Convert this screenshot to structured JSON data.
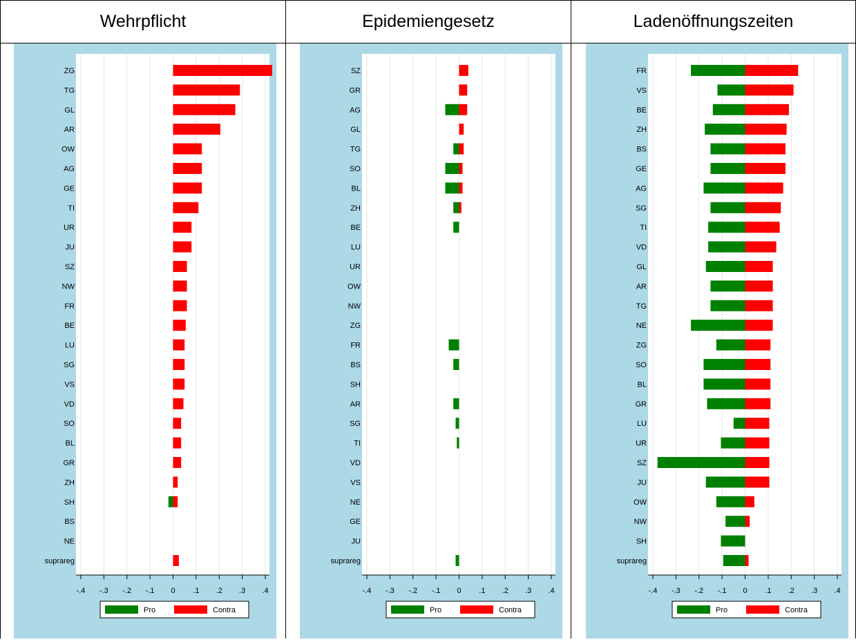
{
  "headers": [
    "Wehrpflicht",
    "Epidemiengesetz",
    "Ladenöffnungszeiten"
  ],
  "legend": {
    "pro": "Pro",
    "contra": "Contra"
  },
  "colors": {
    "pro": "#008000",
    "contra": "#ff0000",
    "panel_bg": "#add8e6",
    "plot_bg": "#ffffff",
    "grid": "#e6e6e6"
  },
  "chart_data": [
    {
      "type": "bar",
      "orientation": "horizontal",
      "stacked": "diverging",
      "title": "Wehrpflicht",
      "xlim": [
        -0.4,
        0.4
      ],
      "xticks": [
        -0.4,
        -0.3,
        -0.2,
        -0.1,
        0,
        0.1,
        0.2,
        0.3,
        0.4
      ],
      "xtick_labels": [
        "-.4",
        "-.3",
        "-.2",
        "-.1",
        "0",
        ".1",
        ".2",
        ".3",
        ".4"
      ],
      "grid": true,
      "legend_position": "bottom",
      "categories": [
        "ZG",
        "TG",
        "GL",
        "AR",
        "OW",
        "AG",
        "GE",
        "TI",
        "UR",
        "JU",
        "SZ",
        "NW",
        "FR",
        "BE",
        "LU",
        "SG",
        "VS",
        "VD",
        "SO",
        "BL",
        "GR",
        "ZH",
        "SH",
        "BS",
        "NE",
        "suprareg"
      ],
      "series": [
        {
          "name": "Pro",
          "values": [
            0,
            0,
            0,
            0,
            0,
            0,
            0,
            0,
            0,
            0,
            0,
            0,
            0,
            0,
            0,
            0,
            0,
            0,
            0,
            0,
            0,
            0,
            -0.02,
            0,
            0,
            0
          ]
        },
        {
          "name": "Contra",
          "values": [
            0.43,
            0.29,
            0.27,
            0.205,
            0.125,
            0.125,
            0.125,
            0.11,
            0.08,
            0.08,
            0.06,
            0.06,
            0.06,
            0.055,
            0.05,
            0.05,
            0.05,
            0.045,
            0.035,
            0.035,
            0.035,
            0.02,
            0.02,
            0,
            0,
            0.025
          ]
        }
      ]
    },
    {
      "type": "bar",
      "orientation": "horizontal",
      "stacked": "diverging",
      "title": "Epidemiengesetz",
      "xlim": [
        -0.4,
        0.4
      ],
      "xticks": [
        -0.4,
        -0.3,
        -0.2,
        -0.1,
        0,
        0.1,
        0.2,
        0.3,
        0.4
      ],
      "xtick_labels": [
        "-.4",
        "-.3",
        "-.2",
        "-.1",
        "0",
        ".1",
        ".2",
        ".3",
        ".4"
      ],
      "grid": true,
      "legend_position": "bottom",
      "categories": [
        "SZ",
        "GR",
        "AG",
        "GL",
        "TG",
        "SO",
        "BL",
        "ZH",
        "BE",
        "LU",
        "UR",
        "OW",
        "NW",
        "ZG",
        "FR",
        "BS",
        "SH",
        "AR",
        "SG",
        "TI",
        "VD",
        "VS",
        "NE",
        "GE",
        "JU",
        "suprareg"
      ],
      "series": [
        {
          "name": "Pro",
          "values": [
            0,
            0,
            -0.06,
            0,
            -0.025,
            -0.06,
            -0.06,
            -0.025,
            -0.025,
            0,
            0,
            0,
            0,
            0,
            -0.045,
            -0.025,
            0,
            -0.025,
            -0.015,
            -0.01,
            0,
            0,
            0,
            0,
            0,
            -0.015
          ]
        },
        {
          "name": "Contra",
          "values": [
            0.04,
            0.035,
            0.035,
            0.02,
            0.02,
            0.015,
            0.015,
            0.01,
            0,
            0,
            0,
            0,
            0,
            0,
            0,
            0,
            0,
            0,
            0,
            0,
            0,
            0,
            0,
            0,
            0,
            0
          ]
        }
      ]
    },
    {
      "type": "bar",
      "orientation": "horizontal",
      "stacked": "diverging",
      "title": "Ladenöffnungszeiten",
      "xlim": [
        -0.4,
        0.4
      ],
      "xticks": [
        -0.4,
        -0.3,
        -0.2,
        -0.1,
        0,
        0.1,
        0.2,
        0.3,
        0.4
      ],
      "xtick_labels": [
        "-.4",
        "-.3",
        "-.2",
        "-.1",
        "0",
        ".1",
        ".2",
        ".3",
        ".4"
      ],
      "grid": true,
      "legend_position": "bottom",
      "categories": [
        "FR",
        "VS",
        "BE",
        "ZH",
        "BS",
        "GE",
        "AG",
        "SG",
        "TI",
        "VD",
        "GL",
        "AR",
        "TG",
        "NE",
        "ZG",
        "SO",
        "BL",
        "GR",
        "LU",
        "UR",
        "SZ",
        "JU",
        "OW",
        "NW",
        "SH",
        "suprareg"
      ],
      "series": [
        {
          "name": "Pro",
          "values": [
            -0.235,
            -0.12,
            -0.14,
            -0.175,
            -0.15,
            -0.15,
            -0.18,
            -0.15,
            -0.16,
            -0.16,
            -0.17,
            -0.15,
            -0.15,
            -0.235,
            -0.125,
            -0.18,
            -0.18,
            -0.165,
            -0.05,
            -0.105,
            -0.38,
            -0.17,
            -0.125,
            -0.085,
            -0.105,
            -0.095
          ]
        },
        {
          "name": "Contra",
          "values": [
            0.23,
            0.21,
            0.19,
            0.18,
            0.175,
            0.175,
            0.165,
            0.155,
            0.15,
            0.135,
            0.12,
            0.12,
            0.12,
            0.12,
            0.11,
            0.11,
            0.11,
            0.11,
            0.105,
            0.105,
            0.105,
            0.105,
            0.04,
            0.02,
            0,
            0.015
          ]
        }
      ]
    }
  ]
}
